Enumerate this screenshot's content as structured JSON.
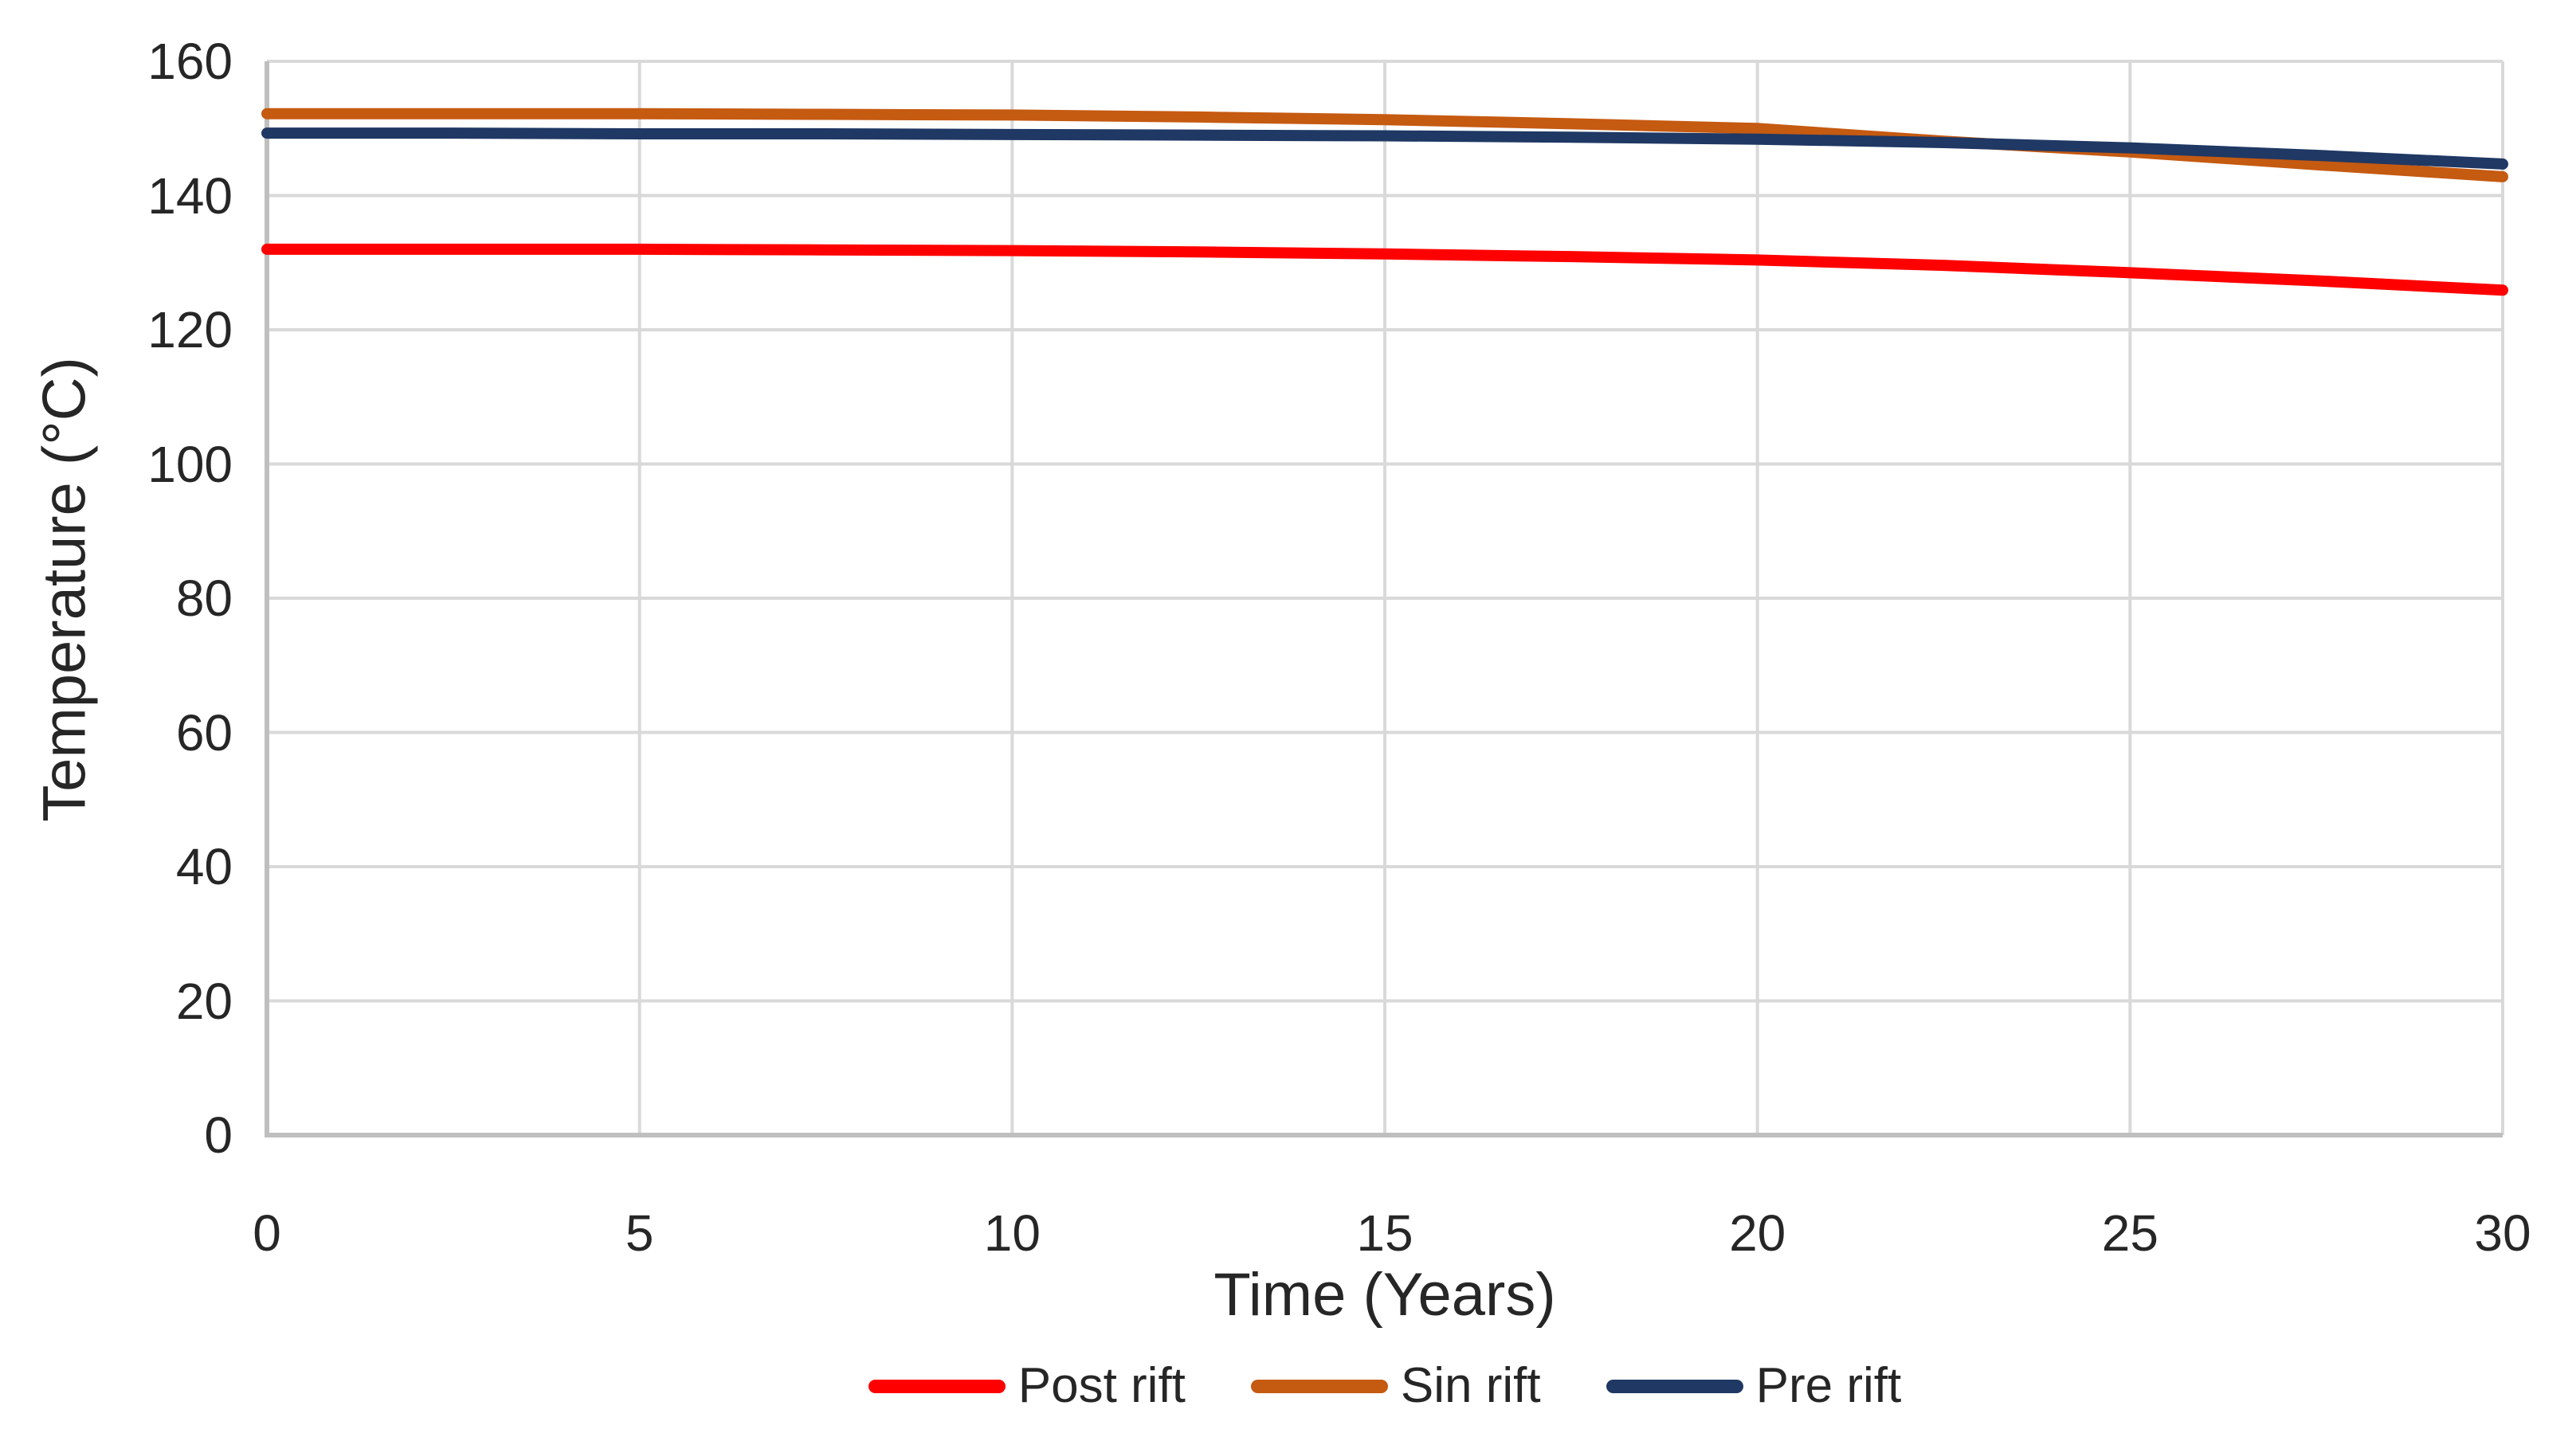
{
  "chart_data": {
    "type": "line",
    "title": "",
    "xlabel": "Time (Years)",
    "ylabel": "Temperature (°C)",
    "xlim": [
      0,
      30
    ],
    "ylim": [
      0,
      160
    ],
    "xticks": [
      0,
      5,
      10,
      15,
      20,
      25,
      30
    ],
    "yticks": [
      0,
      20,
      40,
      60,
      80,
      100,
      120,
      140,
      160
    ],
    "grid": true,
    "legend_position": "bottom",
    "x": [
      0,
      2.5,
      5,
      7.5,
      10,
      12.5,
      15,
      17.5,
      20,
      22.5,
      25,
      27.5,
      30
    ],
    "series": [
      {
        "name": "Post rift",
        "color": "#FF0000",
        "values": [
          132.0,
          132.0,
          132.0,
          131.9,
          131.8,
          131.6,
          131.3,
          130.9,
          130.4,
          129.6,
          128.5,
          127.3,
          125.9
        ]
      },
      {
        "name": "Sin rift",
        "color": "#C55A11",
        "values": [
          152.2,
          152.2,
          152.2,
          152.1,
          152.0,
          151.7,
          151.3,
          150.7,
          150.0,
          148.1,
          146.5,
          144.6,
          142.8
        ]
      },
      {
        "name": "Pre rift",
        "color": "#1F3864",
        "values": [
          149.3,
          149.3,
          149.2,
          149.2,
          149.1,
          149.0,
          148.9,
          148.7,
          148.4,
          147.9,
          147.1,
          146.0,
          144.7
        ]
      }
    ],
    "style": {
      "grid_color": "#D9D9D9",
      "axis_color": "#BFBFBF",
      "text_color": "#262626",
      "line_width": 14
    }
  }
}
